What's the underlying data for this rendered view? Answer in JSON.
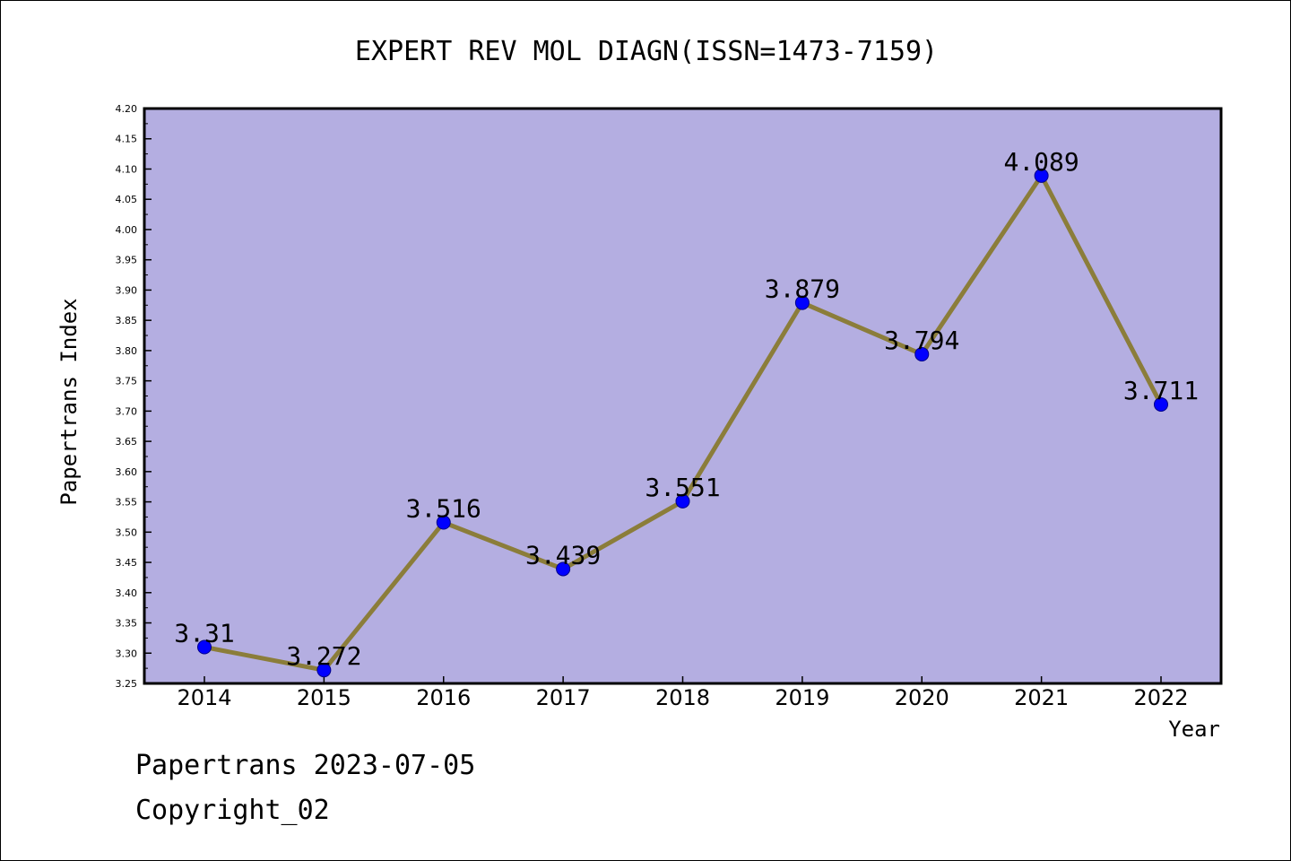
{
  "chart_data": {
    "type": "line",
    "title": "EXPERT REV MOL DIAGN(ISSN=1473-7159)",
    "xlabel": "Year",
    "ylabel": "Papertrans Index",
    "categories": [
      "2014",
      "2015",
      "2016",
      "2017",
      "2018",
      "2019",
      "2020",
      "2021",
      "2022"
    ],
    "values": [
      3.31,
      3.272,
      3.516,
      3.439,
      3.551,
      3.879,
      3.794,
      4.089,
      3.711
    ],
    "data_labels": [
      "3.31",
      "3.272",
      "3.516",
      "3.439",
      "3.551",
      "3.879",
      "3.794",
      "4.089",
      "3.711"
    ],
    "ylim": [
      3.25,
      4.2
    ],
    "yticks": [
      "3.25",
      "3.30",
      "3.35",
      "3.40",
      "3.45",
      "3.50",
      "3.55",
      "3.60",
      "3.65",
      "3.70",
      "3.75",
      "3.80",
      "3.85",
      "3.90",
      "3.95",
      "4.00",
      "4.05",
      "4.10",
      "4.15",
      "4.20"
    ],
    "ytick_values": [
      3.25,
      3.3,
      3.35,
      3.4,
      3.45,
      3.5,
      3.55,
      3.6,
      3.65,
      3.7,
      3.75,
      3.8,
      3.85,
      3.9,
      3.95,
      4.0,
      4.05,
      4.1,
      4.15,
      4.2
    ],
    "grid": false,
    "colors": {
      "plot_background": "#b4aee1",
      "line": "#8b7d3a",
      "marker": "#0000ff",
      "marker_edge": "#00008b",
      "axes": "#000000"
    }
  },
  "footer": {
    "line1": "Papertrans 2023-07-05",
    "line2": "Copyright_02"
  }
}
